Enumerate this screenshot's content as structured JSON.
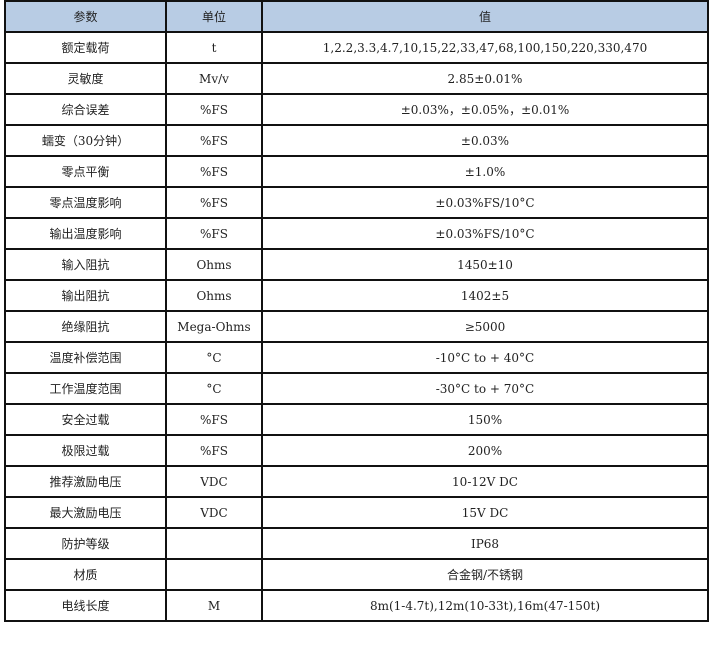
{
  "header": {
    "param": "参数",
    "unit": "单位",
    "value": "值"
  },
  "colors": {
    "header_bg": "#b8cce4",
    "border": "#111111"
  },
  "rows": [
    {
      "param": "额定载荷",
      "unit": "t",
      "value": "1,2.2,3.3,4.7,10,15,22,33,47,68,100,150,220,330,470"
    },
    {
      "param": "灵敏度",
      "unit": "Mv/v",
      "value": "2.85±0.01%"
    },
    {
      "param": "综合误差",
      "unit": "%FS",
      "value": "±0.03%，±0.05%，±0.01%"
    },
    {
      "param": "蠕变（30分钟）",
      "unit": "%FS",
      "value": "±0.03%"
    },
    {
      "param": "零点平衡",
      "unit": "%FS",
      "value": "±1.0%"
    },
    {
      "param": "零点温度影响",
      "unit": "%FS",
      "value": "±0.03%FS/10°C"
    },
    {
      "param": "输出温度影响",
      "unit": "%FS",
      "value": "±0.03%FS/10°C"
    },
    {
      "param": "输入阻抗",
      "unit": "Ohms",
      "value": "1450±10"
    },
    {
      "param": "输出阻抗",
      "unit": "Ohms",
      "value": "1402±5"
    },
    {
      "param": "绝缘阻抗",
      "unit": "Mega-Ohms",
      "value": "≥5000"
    },
    {
      "param": "温度补偿范围",
      "unit": "°C",
      "value": "-10°C to + 40°C"
    },
    {
      "param": "工作温度范围",
      "unit": "°C",
      "value": "-30°C to + 70°C"
    },
    {
      "param": "安全过载",
      "unit": "%FS",
      "value": "150%"
    },
    {
      "param": "极限过载",
      "unit": "%FS",
      "value": "200%"
    },
    {
      "param": "推荐激励电压",
      "unit": "VDC",
      "value": "10-12V DC"
    },
    {
      "param": "最大激励电压",
      "unit": "VDC",
      "value": "15V DC"
    },
    {
      "param": "防护等级",
      "unit": "",
      "value": "IP68"
    },
    {
      "param": "材质",
      "unit": "",
      "value": "合金钢/不锈钢"
    },
    {
      "param": "电线长度",
      "unit": "M",
      "value": "8m(1-4.7t),12m(10-33t),16m(47-150t)"
    }
  ]
}
